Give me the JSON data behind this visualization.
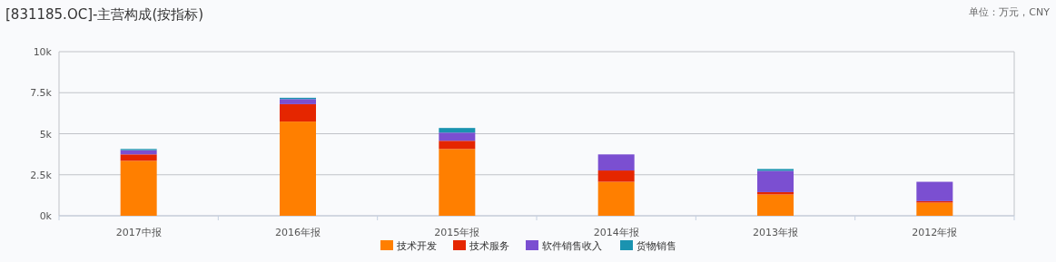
{
  "chart_data": {
    "type": "bar",
    "title": "[831185.OC]-主营构成(按指标)",
    "annotations": [
      "单位：万元，CNY"
    ],
    "categories": [
      "2017中报",
      "2016年报",
      "2015年报",
      "2014年报",
      "2013年报",
      "2012年报"
    ],
    "stacked": true,
    "grid": "y",
    "legend": "bottom",
    "ylim": [
      0,
      10000
    ],
    "yticks": [
      {
        "value": 0,
        "label": "0k"
      },
      {
        "value": 2500,
        "label": "2.5k"
      },
      {
        "value": 5000,
        "label": "5k"
      },
      {
        "value": 7500,
        "label": "7.5k"
      },
      {
        "value": 10000,
        "label": "10k"
      }
    ],
    "series": [
      {
        "name": "技术开发",
        "color": "#ff7f00",
        "values": [
          3350,
          5740,
          4070,
          2070,
          1300,
          800
        ]
      },
      {
        "name": "技术服务",
        "color": "#e52600",
        "values": [
          390,
          1060,
          500,
          690,
          140,
          90
        ]
      },
      {
        "name": "软件销售收入",
        "color": "#7b4fd1",
        "values": [
          260,
          310,
          500,
          980,
          1300,
          1180
        ]
      },
      {
        "name": "货物销售",
        "color": "#1a93b0",
        "values": [
          70,
          80,
          280,
          null,
          110,
          null
        ]
      }
    ]
  }
}
